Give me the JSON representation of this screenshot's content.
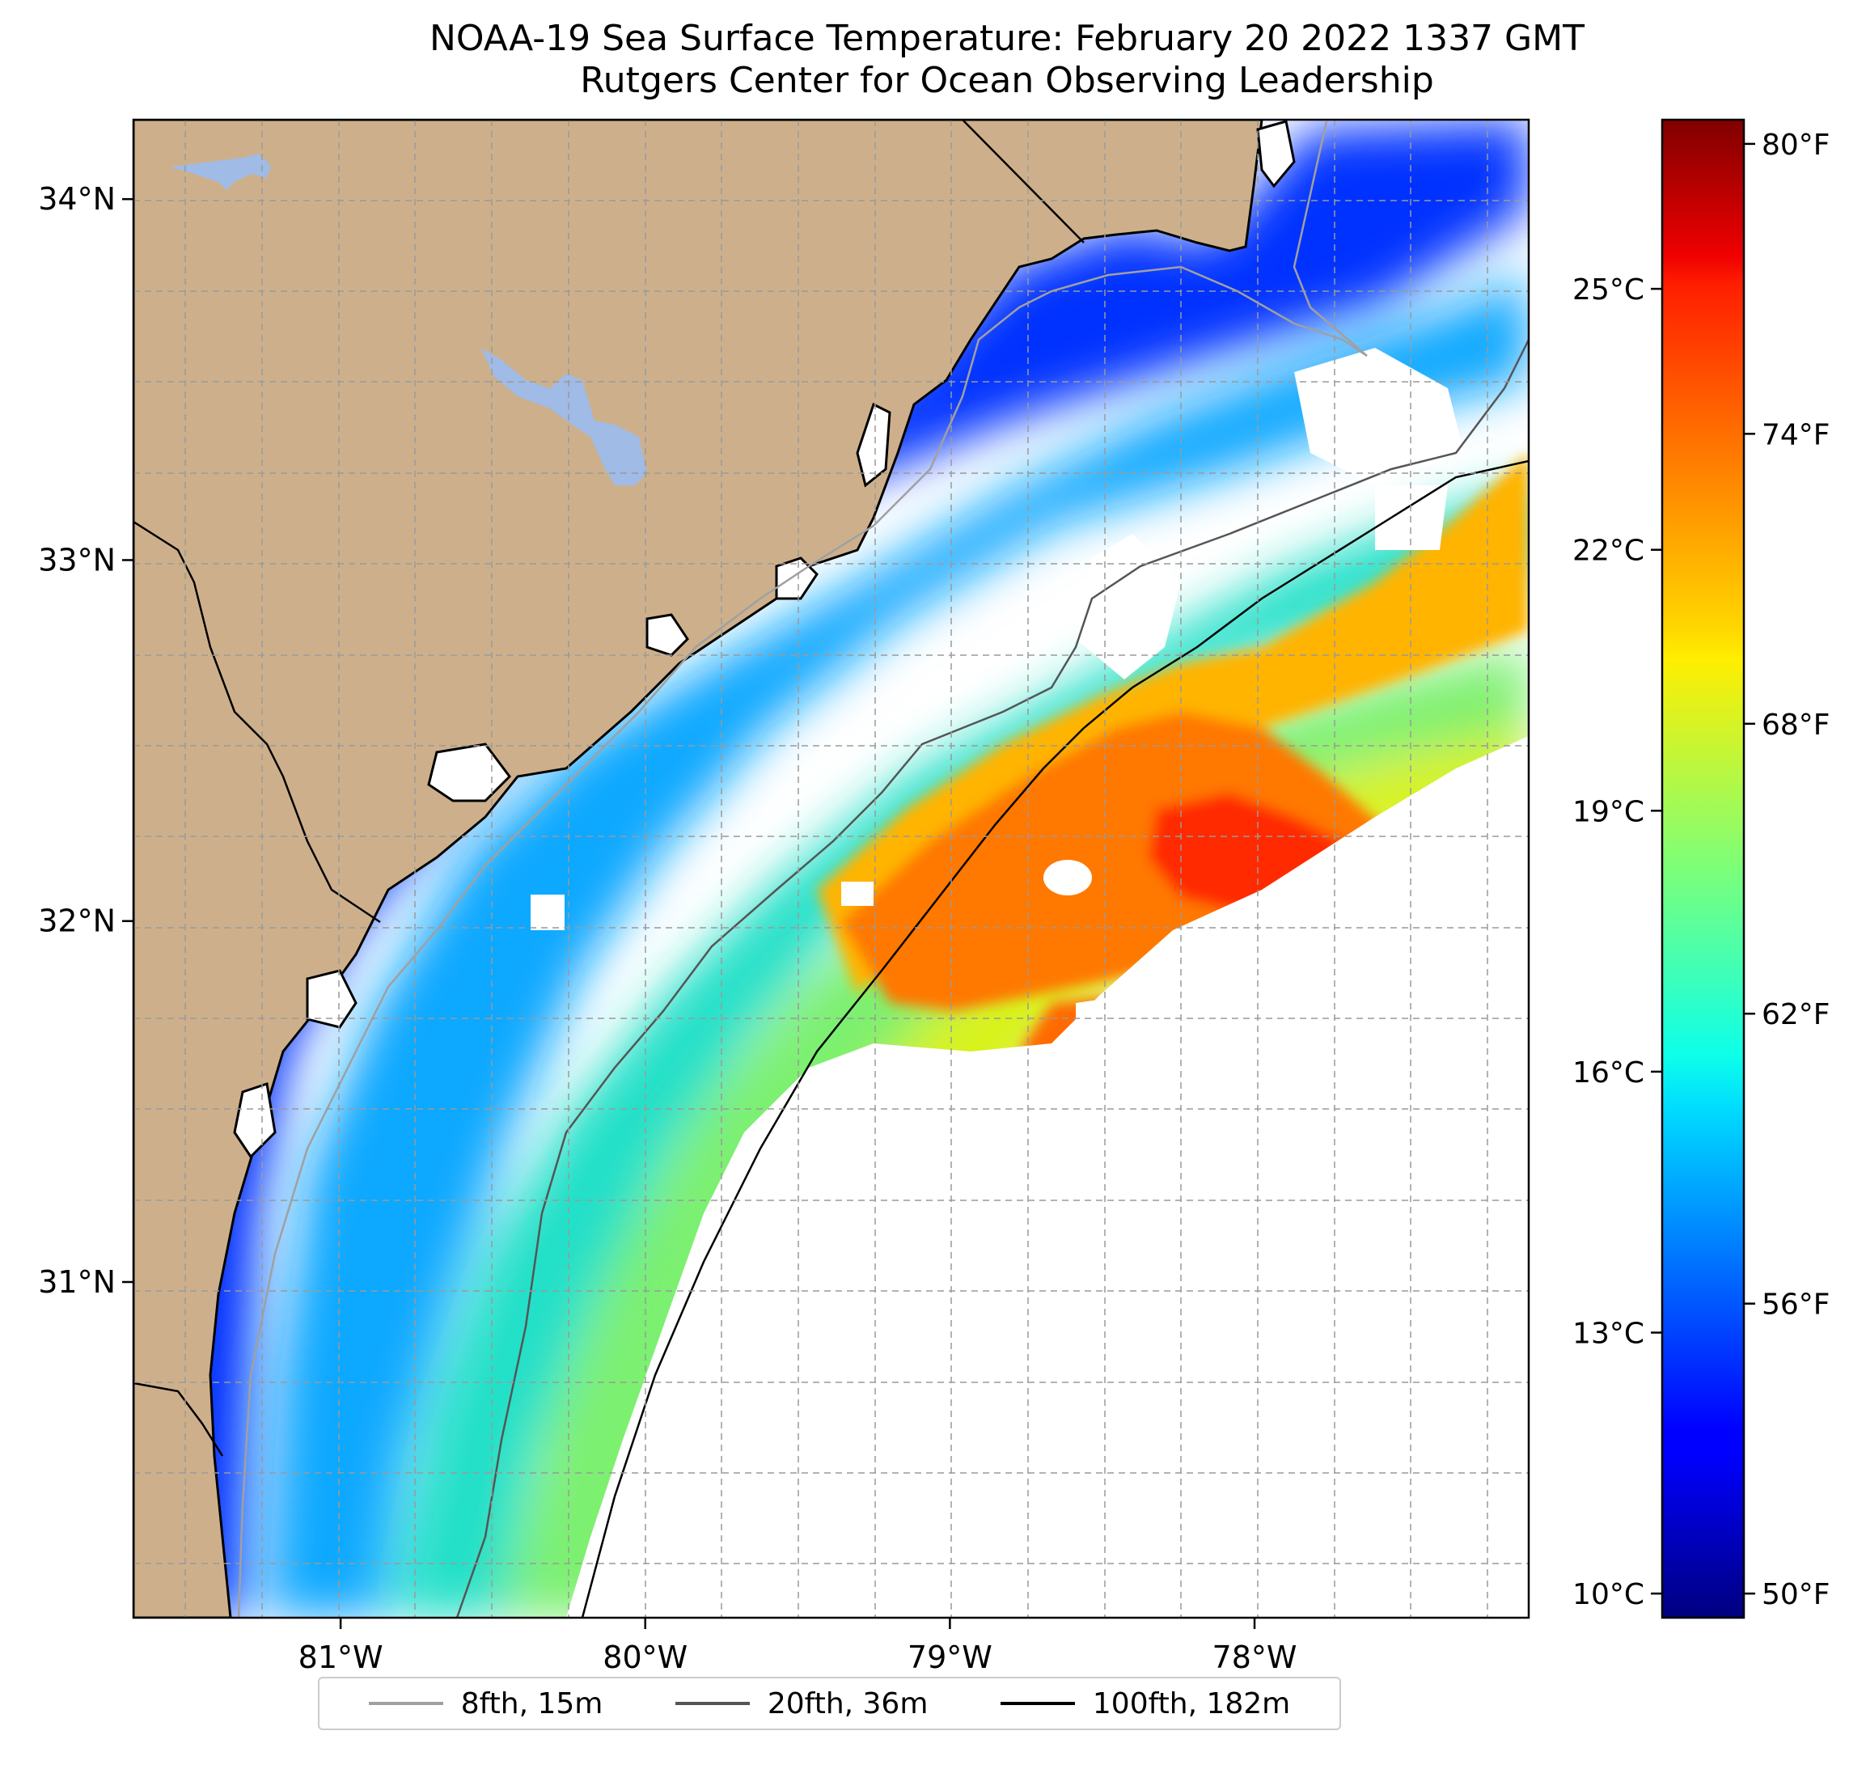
{
  "title": {
    "line1": "NOAA-19 Sea Surface Temperature: February 20 2022 1337 GMT",
    "line2": "Rutgers Center for Ocean Observing Leadership"
  },
  "map": {
    "lon_range": [
      -81.68,
      -77.1
    ],
    "lat_range": [
      30.07,
      34.22
    ],
    "lon_ticks": [
      {
        "value": -81,
        "label": "81°W"
      },
      {
        "value": -80,
        "label": "80°W"
      },
      {
        "value": -79,
        "label": "79°W"
      },
      {
        "value": -78,
        "label": "78°W"
      }
    ],
    "lat_ticks": [
      {
        "value": 34,
        "label": "34°N"
      },
      {
        "value": 33,
        "label": "33°N"
      },
      {
        "value": 32,
        "label": "32°N"
      },
      {
        "value": 31,
        "label": "31°N"
      }
    ],
    "land_color": "#cdb08b",
    "water_body_color": "#9fbbe6",
    "gridlines": "dashed grey"
  },
  "colorbar": {
    "min_f": 49.5,
    "max_f": 80.5,
    "celsius_ticks": [
      {
        "value": 25,
        "label": "25°C"
      },
      {
        "value": 22,
        "label": "22°C"
      },
      {
        "value": 19,
        "label": "19°C"
      },
      {
        "value": 16,
        "label": "16°C"
      },
      {
        "value": 13,
        "label": "13°C"
      },
      {
        "value": 10,
        "label": "10°C"
      }
    ],
    "fahrenheit_ticks": [
      {
        "value": 80,
        "label": "80°F"
      },
      {
        "value": 74,
        "label": "74°F"
      },
      {
        "value": 68,
        "label": "68°F"
      },
      {
        "value": 62,
        "label": "62°F"
      },
      {
        "value": 56,
        "label": "56°F"
      },
      {
        "value": 50,
        "label": "50°F"
      }
    ],
    "colormap": "jet"
  },
  "legend": {
    "items": [
      {
        "label": "8fth, 15m",
        "color": "#a0a0a0"
      },
      {
        "label": "20fth, 36m",
        "color": "#555555"
      },
      {
        "label": "100fth, 182m",
        "color": "#000000"
      }
    ]
  }
}
